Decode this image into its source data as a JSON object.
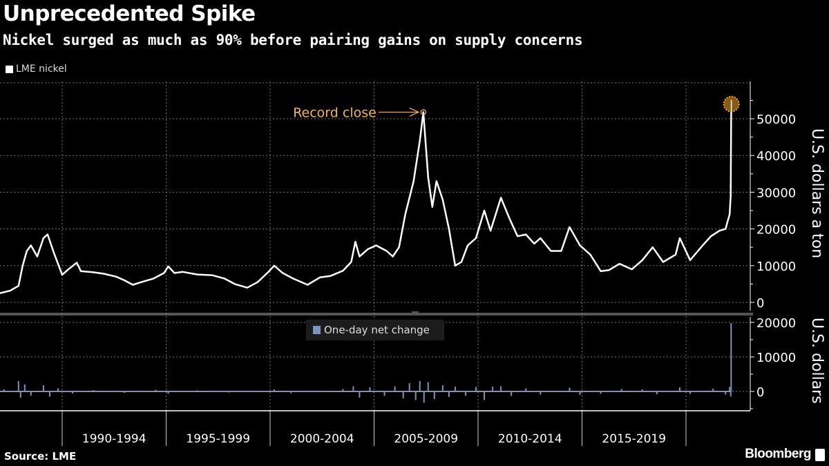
{
  "title": "Unprecedented Spike",
  "subtitle": "Nickel surged as much as 90% before pairing gains on supply concerns",
  "source": "Source: LME",
  "brand": "Bloomberg",
  "chart_data": [
    {
      "type": "line",
      "series": [
        {
          "name": "LME nickel",
          "color": "#ffffff",
          "points": [
            [
              1987.0,
              2500
            ],
            [
              1987.5,
              3200
            ],
            [
              1987.9,
              4500
            ],
            [
              1988.1,
              10000
            ],
            [
              1988.3,
              14000
            ],
            [
              1988.5,
              15500
            ],
            [
              1988.8,
              12500
            ],
            [
              1989.1,
              17500
            ],
            [
              1989.3,
              18500
            ],
            [
              1989.6,
              13500
            ],
            [
              1989.9,
              9000
            ],
            [
              1990.0,
              7500
            ],
            [
              1990.3,
              9000
            ],
            [
              1990.7,
              10800
            ],
            [
              1990.9,
              8500
            ],
            [
              1991.5,
              8200
            ],
            [
              1992.0,
              7800
            ],
            [
              1992.6,
              7000
            ],
            [
              1993.0,
              6000
            ],
            [
              1993.4,
              4800
            ],
            [
              1993.8,
              5500
            ],
            [
              1994.4,
              6500
            ],
            [
              1994.9,
              8000
            ],
            [
              1995.1,
              9800
            ],
            [
              1995.4,
              8000
            ],
            [
              1995.8,
              8300
            ],
            [
              1996.5,
              7600
            ],
            [
              1997.2,
              7400
            ],
            [
              1997.8,
              6500
            ],
            [
              1998.3,
              5000
            ],
            [
              1998.9,
              4000
            ],
            [
              1999.4,
              5500
            ],
            [
              1999.9,
              8200
            ],
            [
              2000.2,
              10000
            ],
            [
              2000.6,
              8000
            ],
            [
              2001.1,
              6500
            ],
            [
              2001.8,
              4800
            ],
            [
              2002.4,
              6800
            ],
            [
              2002.9,
              7200
            ],
            [
              2003.5,
              8600
            ],
            [
              2003.9,
              11000
            ],
            [
              2004.1,
              16500
            ],
            [
              2004.3,
              12500
            ],
            [
              2004.7,
              14500
            ],
            [
              2005.1,
              15500
            ],
            [
              2005.6,
              14000
            ],
            [
              2005.9,
              12500
            ],
            [
              2006.2,
              15000
            ],
            [
              2006.5,
              24000
            ],
            [
              2006.9,
              33000
            ],
            [
              2007.2,
              44000
            ],
            [
              2007.37,
              51800
            ],
            [
              2007.6,
              34000
            ],
            [
              2007.8,
              26000
            ],
            [
              2008.0,
              33000
            ],
            [
              2008.3,
              28000
            ],
            [
              2008.6,
              20000
            ],
            [
              2008.9,
              10000
            ],
            [
              2009.2,
              11000
            ],
            [
              2009.5,
              15500
            ],
            [
              2009.9,
              17500
            ],
            [
              2010.3,
              25000
            ],
            [
              2010.6,
              19500
            ],
            [
              2011.1,
              28500
            ],
            [
              2011.5,
              23000
            ],
            [
              2011.9,
              18000
            ],
            [
              2012.3,
              18500
            ],
            [
              2012.7,
              16000
            ],
            [
              2013.0,
              17500
            ],
            [
              2013.5,
              14000
            ],
            [
              2014.0,
              14000
            ],
            [
              2014.4,
              20500
            ],
            [
              2014.9,
              15500
            ],
            [
              2015.4,
              13000
            ],
            [
              2015.9,
              8500
            ],
            [
              2016.3,
              8800
            ],
            [
              2016.8,
              10500
            ],
            [
              2017.4,
              9000
            ],
            [
              2017.9,
              11500
            ],
            [
              2018.4,
              15000
            ],
            [
              2018.9,
              11000
            ],
            [
              2019.5,
              13000
            ],
            [
              2019.7,
              17500
            ],
            [
              2020.2,
              11500
            ],
            [
              2020.8,
              15500
            ],
            [
              2021.2,
              18000
            ],
            [
              2021.6,
              19500
            ],
            [
              2021.9,
              20000
            ],
            [
              2022.1,
              24000
            ],
            [
              2022.15,
              29000
            ],
            [
              2022.17,
              48000
            ],
            [
              2022.18,
              55000
            ]
          ]
        }
      ],
      "ylabel": "U.S. dollars a ton",
      "ylim": [
        -2000,
        60000
      ],
      "yticks": [
        0,
        10000,
        20000,
        30000,
        40000,
        50000
      ],
      "xlim": [
        1987.0,
        2022.3
      ],
      "annotations": [
        {
          "text": "Record close",
          "x": 2007.37,
          "y": 51800,
          "color": "#f0b45a"
        },
        {
          "marker": "highlight-circle",
          "x": 2022.18,
          "y": 54000,
          "color": "#f0a030"
        }
      ],
      "grid": true
    },
    {
      "type": "bar",
      "series": [
        {
          "name": "One-day net change",
          "color": "#7d93b8",
          "points": [
            [
              1987.2,
              600
            ],
            [
              1987.9,
              3000
            ],
            [
              1988.0,
              -1800
            ],
            [
              1988.2,
              2000
            ],
            [
              1988.5,
              -1200
            ],
            [
              1989.1,
              1800
            ],
            [
              1989.4,
              -1500
            ],
            [
              1989.8,
              900
            ],
            [
              1990.5,
              -600
            ],
            [
              1991.5,
              400
            ],
            [
              1993.0,
              -400
            ],
            [
              1994.5,
              500
            ],
            [
              1995.1,
              -700
            ],
            [
              1996.5,
              300
            ],
            [
              1998.0,
              -300
            ],
            [
              2000.2,
              600
            ],
            [
              2001.0,
              -500
            ],
            [
              2003.5,
              700
            ],
            [
              2004.0,
              1500
            ],
            [
              2004.3,
              -1800
            ],
            [
              2004.8,
              1200
            ],
            [
              2005.5,
              -1300
            ],
            [
              2006.0,
              1500
            ],
            [
              2006.4,
              -2000
            ],
            [
              2006.7,
              2400
            ],
            [
              2007.0,
              -2500
            ],
            [
              2007.2,
              3000
            ],
            [
              2007.4,
              -3300
            ],
            [
              2007.6,
              2700
            ],
            [
              2007.9,
              -2200
            ],
            [
              2008.3,
              1800
            ],
            [
              2008.6,
              -1600
            ],
            [
              2008.9,
              1400
            ],
            [
              2009.4,
              -1200
            ],
            [
              2009.9,
              1300
            ],
            [
              2010.3,
              -2500
            ],
            [
              2010.7,
              1400
            ],
            [
              2011.1,
              1500
            ],
            [
              2011.6,
              -1300
            ],
            [
              2012.3,
              900
            ],
            [
              2013.0,
              -900
            ],
            [
              2014.4,
              1100
            ],
            [
              2014.9,
              -1000
            ],
            [
              2015.9,
              -700
            ],
            [
              2016.9,
              700
            ],
            [
              2017.9,
              600
            ],
            [
              2018.6,
              -800
            ],
            [
              2019.7,
              1200
            ],
            [
              2020.2,
              -700
            ],
            [
              2021.3,
              800
            ],
            [
              2021.9,
              -900
            ],
            [
              2022.1,
              1300
            ],
            [
              2022.15,
              -1500
            ],
            [
              2022.17,
              19800
            ]
          ]
        }
      ],
      "ylabel": "U.S. dollars",
      "ylim": [
        -5000,
        20000
      ],
      "yticks": [
        0,
        10000,
        20000
      ],
      "xticklabels": [
        "1990-1994",
        "1995-1999",
        "2000-2004",
        "2005-2009",
        "2010-2014",
        "2015-2019"
      ],
      "grid": true
    }
  ]
}
